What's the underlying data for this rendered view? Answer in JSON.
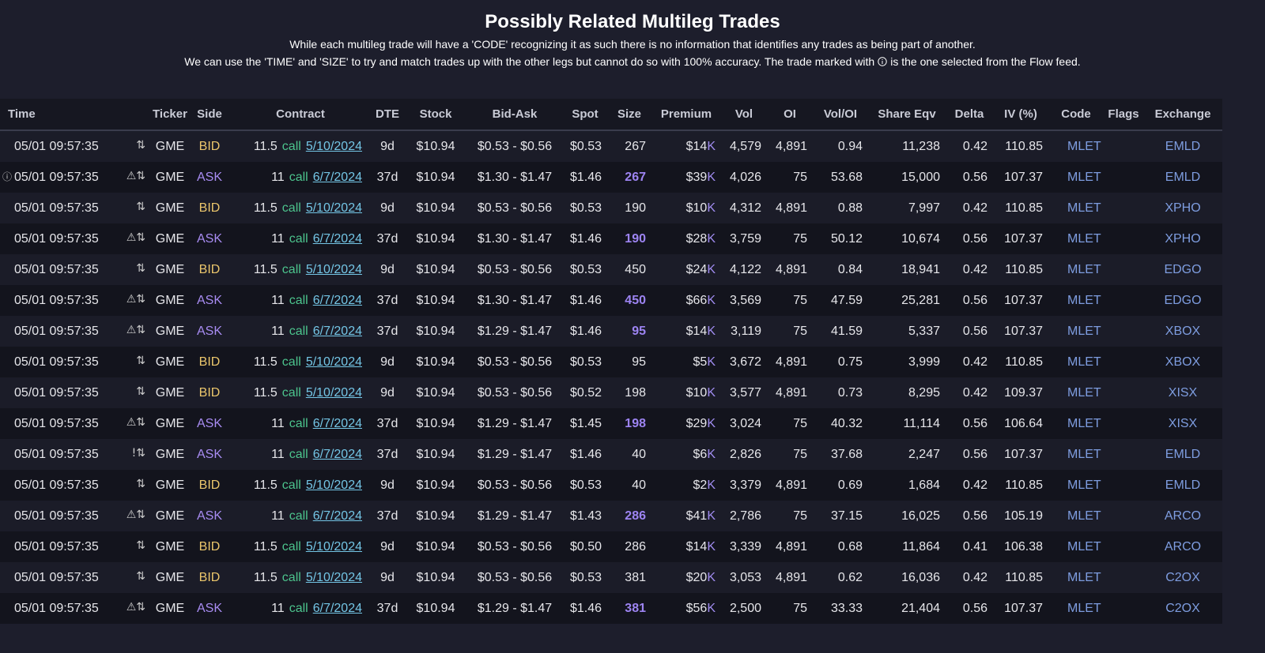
{
  "header": {
    "title": "Possibly Related Multileg Trades",
    "lines": [
      "While each multileg trade will have a 'CODE' recognizing it as such there is no information that identifies any trades as being part of another.",
      "We can use the 'TIME' and 'SIZE' to try and match trades up with the other legs but cannot do so with 100% accuracy. The trade marked with",
      "is the one selected from the Flow feed."
    ]
  },
  "table": {
    "columns": [
      "Time",
      "Ticker",
      "Side",
      "Contract",
      "DTE",
      "Stock",
      "Bid-Ask",
      "Spot",
      "Size",
      "Premium",
      "Vol",
      "OI",
      "Vol/OI",
      "Share Eqv",
      "Delta",
      "IV (%)",
      "Code",
      "Flags",
      "Exchange"
    ],
    "rows": [
      {
        "time": "05/01 09:57:35",
        "icons": "⇅",
        "ticker": "GME",
        "side": "BID",
        "strike": "11.5",
        "type": "call",
        "expiry": "5/10/2024",
        "dte": "9d",
        "stock": "$10.94",
        "bid_ask": "$0.53 - $0.56",
        "spot": "$0.53",
        "size": "267",
        "premium": {
          "amount": "$14",
          "unit": "K"
        },
        "vol": "4,579",
        "oi": "4,891",
        "vol_oi": "0.94",
        "share_eqv": "11,238",
        "delta": "0.42",
        "iv": "110.85",
        "code": "MLET",
        "exchange": "EMLD"
      },
      {
        "marker": "ⓘ",
        "time": "05/01 09:57:35",
        "icons": "⚠⇅",
        "ticker": "GME",
        "side": "ASK",
        "strike": "11",
        "type": "call",
        "expiry": "6/7/2024",
        "dte": "37d",
        "stock": "$10.94",
        "bid_ask": "$1.30 - $1.47",
        "spot": "$1.46",
        "size": "267",
        "size_color": "#9d84f2",
        "premium": {
          "amount": "$39",
          "unit": "K"
        },
        "vol": "4,026",
        "oi": "75",
        "vol_oi": "53.68",
        "share_eqv": "15,000",
        "delta": "0.56",
        "iv": "107.37",
        "code": "MLET",
        "exchange": "EMLD"
      },
      {
        "time": "05/01 09:57:35",
        "icons": "⇅",
        "ticker": "GME",
        "side": "BID",
        "strike": "11.5",
        "type": "call",
        "expiry": "5/10/2024",
        "dte": "9d",
        "stock": "$10.94",
        "bid_ask": "$0.53 - $0.56",
        "spot": "$0.53",
        "size": "190",
        "premium": {
          "amount": "$10",
          "unit": "K"
        },
        "vol": "4,312",
        "oi": "4,891",
        "vol_oi": "0.88",
        "share_eqv": "7,997",
        "delta": "0.42",
        "iv": "110.85",
        "code": "MLET",
        "exchange": "XPHO"
      },
      {
        "time": "05/01 09:57:35",
        "icons": "⚠⇅",
        "ticker": "GME",
        "side": "ASK",
        "strike": "11",
        "type": "call",
        "expiry": "6/7/2024",
        "dte": "37d",
        "stock": "$10.94",
        "bid_ask": "$1.30 - $1.47",
        "spot": "$1.46",
        "size": "190",
        "size_color": "#9d84f2",
        "premium": {
          "amount": "$28",
          "unit": "K"
        },
        "vol": "3,759",
        "oi": "75",
        "vol_oi": "50.12",
        "share_eqv": "10,674",
        "delta": "0.56",
        "iv": "107.37",
        "code": "MLET",
        "exchange": "XPHO"
      },
      {
        "time": "05/01 09:57:35",
        "icons": "⇅",
        "ticker": "GME",
        "side": "BID",
        "strike": "11.5",
        "type": "call",
        "expiry": "5/10/2024",
        "dte": "9d",
        "stock": "$10.94",
        "bid_ask": "$0.53 - $0.56",
        "spot": "$0.53",
        "size": "450",
        "premium": {
          "amount": "$24",
          "unit": "K"
        },
        "vol": "4,122",
        "oi": "4,891",
        "vol_oi": "0.84",
        "share_eqv": "18,941",
        "delta": "0.42",
        "iv": "110.85",
        "code": "MLET",
        "exchange": "EDGO"
      },
      {
        "time": "05/01 09:57:35",
        "icons": "⚠⇅",
        "ticker": "GME",
        "side": "ASK",
        "strike": "11",
        "type": "call",
        "expiry": "6/7/2024",
        "dte": "37d",
        "stock": "$10.94",
        "bid_ask": "$1.30 - $1.47",
        "spot": "$1.46",
        "size": "450",
        "size_color": "#9d84f2",
        "premium": {
          "amount": "$66",
          "unit": "K"
        },
        "vol": "3,569",
        "oi": "75",
        "vol_oi": "47.59",
        "share_eqv": "25,281",
        "delta": "0.56",
        "iv": "107.37",
        "code": "MLET",
        "exchange": "EDGO"
      },
      {
        "time": "05/01 09:57:35",
        "icons": "⚠⇅",
        "ticker": "GME",
        "side": "ASK",
        "strike": "11",
        "type": "call",
        "expiry": "6/7/2024",
        "dte": "37d",
        "stock": "$10.94",
        "bid_ask": "$1.29 - $1.47",
        "spot": "$1.46",
        "size": "95",
        "size_color": "#9d84f2",
        "premium": {
          "amount": "$14",
          "unit": "K"
        },
        "vol": "3,119",
        "oi": "75",
        "vol_oi": "41.59",
        "share_eqv": "5,337",
        "delta": "0.56",
        "iv": "107.37",
        "code": "MLET",
        "exchange": "XBOX"
      },
      {
        "time": "05/01 09:57:35",
        "icons": "⇅",
        "ticker": "GME",
        "side": "BID",
        "strike": "11.5",
        "type": "call",
        "expiry": "5/10/2024",
        "dte": "9d",
        "stock": "$10.94",
        "bid_ask": "$0.53 - $0.56",
        "spot": "$0.53",
        "size": "95",
        "premium": {
          "amount": "$5",
          "unit": "K"
        },
        "vol": "3,672",
        "oi": "4,891",
        "vol_oi": "0.75",
        "share_eqv": "3,999",
        "delta": "0.42",
        "iv": "110.85",
        "code": "MLET",
        "exchange": "XBOX"
      },
      {
        "time": "05/01 09:57:35",
        "icons": "⇅",
        "ticker": "GME",
        "side": "BID",
        "strike": "11.5",
        "type": "call",
        "expiry": "5/10/2024",
        "dte": "9d",
        "stock": "$10.94",
        "bid_ask": "$0.53 - $0.56",
        "spot": "$0.52",
        "size": "198",
        "premium": {
          "amount": "$10",
          "unit": "K"
        },
        "vol": "3,577",
        "oi": "4,891",
        "vol_oi": "0.73",
        "share_eqv": "8,295",
        "delta": "0.42",
        "iv": "109.37",
        "code": "MLET",
        "exchange": "XISX"
      },
      {
        "time": "05/01 09:57:35",
        "icons": "⚠⇅",
        "ticker": "GME",
        "side": "ASK",
        "strike": "11",
        "type": "call",
        "expiry": "6/7/2024",
        "dte": "37d",
        "stock": "$10.94",
        "bid_ask": "$1.29 - $1.47",
        "spot": "$1.45",
        "size": "198",
        "size_color": "#9d84f2",
        "premium": {
          "amount": "$29",
          "unit": "K"
        },
        "vol": "3,024",
        "oi": "75",
        "vol_oi": "40.32",
        "share_eqv": "11,114",
        "delta": "0.56",
        "iv": "106.64",
        "code": "MLET",
        "exchange": "XISX"
      },
      {
        "time": "05/01 09:57:35",
        "icons": "!⇅",
        "ticker": "GME",
        "side": "ASK",
        "strike": "11",
        "type": "call",
        "expiry": "6/7/2024",
        "dte": "37d",
        "stock": "$10.94",
        "bid_ask": "$1.29 - $1.47",
        "spot": "$1.46",
        "size": "40",
        "premium": {
          "amount": "$6",
          "unit": "K"
        },
        "vol": "2,826",
        "oi": "75",
        "vol_oi": "37.68",
        "share_eqv": "2,247",
        "delta": "0.56",
        "iv": "107.37",
        "code": "MLET",
        "exchange": "EMLD"
      },
      {
        "time": "05/01 09:57:35",
        "icons": "⇅",
        "ticker": "GME",
        "side": "BID",
        "strike": "11.5",
        "type": "call",
        "expiry": "5/10/2024",
        "dte": "9d",
        "stock": "$10.94",
        "bid_ask": "$0.53 - $0.56",
        "spot": "$0.53",
        "size": "40",
        "premium": {
          "amount": "$2",
          "unit": "K"
        },
        "vol": "3,379",
        "oi": "4,891",
        "vol_oi": "0.69",
        "share_eqv": "1,684",
        "delta": "0.42",
        "iv": "110.85",
        "code": "MLET",
        "exchange": "EMLD"
      },
      {
        "time": "05/01 09:57:35",
        "icons": "⚠⇅",
        "ticker": "GME",
        "side": "ASK",
        "strike": "11",
        "type": "call",
        "expiry": "6/7/2024",
        "dte": "37d",
        "stock": "$10.94",
        "bid_ask": "$1.29 - $1.47",
        "spot": "$1.43",
        "size": "286",
        "size_color": "#9d84f2",
        "premium": {
          "amount": "$41",
          "unit": "K"
        },
        "vol": "2,786",
        "oi": "75",
        "vol_oi": "37.15",
        "share_eqv": "16,025",
        "delta": "0.56",
        "iv": "105.19",
        "code": "MLET",
        "exchange": "ARCO"
      },
      {
        "time": "05/01 09:57:35",
        "icons": "⇅",
        "ticker": "GME",
        "side": "BID",
        "strike": "11.5",
        "type": "call",
        "expiry": "5/10/2024",
        "dte": "9d",
        "stock": "$10.94",
        "bid_ask": "$0.53 - $0.56",
        "spot": "$0.50",
        "size": "286",
        "premium": {
          "amount": "$14",
          "unit": "K"
        },
        "vol": "3,339",
        "oi": "4,891",
        "vol_oi": "0.68",
        "share_eqv": "11,864",
        "delta": "0.41",
        "iv": "106.38",
        "code": "MLET",
        "exchange": "ARCO"
      },
      {
        "time": "05/01 09:57:35",
        "icons": "⇅",
        "ticker": "GME",
        "side": "BID",
        "strike": "11.5",
        "type": "call",
        "expiry": "5/10/2024",
        "dte": "9d",
        "stock": "$10.94",
        "bid_ask": "$0.53 - $0.56",
        "spot": "$0.53",
        "size": "381",
        "premium": {
          "amount": "$20",
          "unit": "K"
        },
        "vol": "3,053",
        "oi": "4,891",
        "vol_oi": "0.62",
        "share_eqv": "16,036",
        "delta": "0.42",
        "iv": "110.85",
        "code": "MLET",
        "exchange": "C2OX"
      },
      {
        "time": "05/01 09:57:35",
        "icons": "⚠⇅",
        "ticker": "GME",
        "side": "ASK",
        "strike": "11",
        "type": "call",
        "expiry": "6/7/2024",
        "dte": "37d",
        "stock": "$10.94",
        "bid_ask": "$1.29 - $1.47",
        "spot": "$1.46",
        "size": "381",
        "size_color": "#9d84f2",
        "premium": {
          "amount": "$56",
          "unit": "K"
        },
        "vol": "2,500",
        "oi": "75",
        "vol_oi": "33.33",
        "share_eqv": "21,404",
        "delta": "0.56",
        "iv": "107.37",
        "code": "MLET",
        "exchange": "C2OX"
      }
    ]
  }
}
